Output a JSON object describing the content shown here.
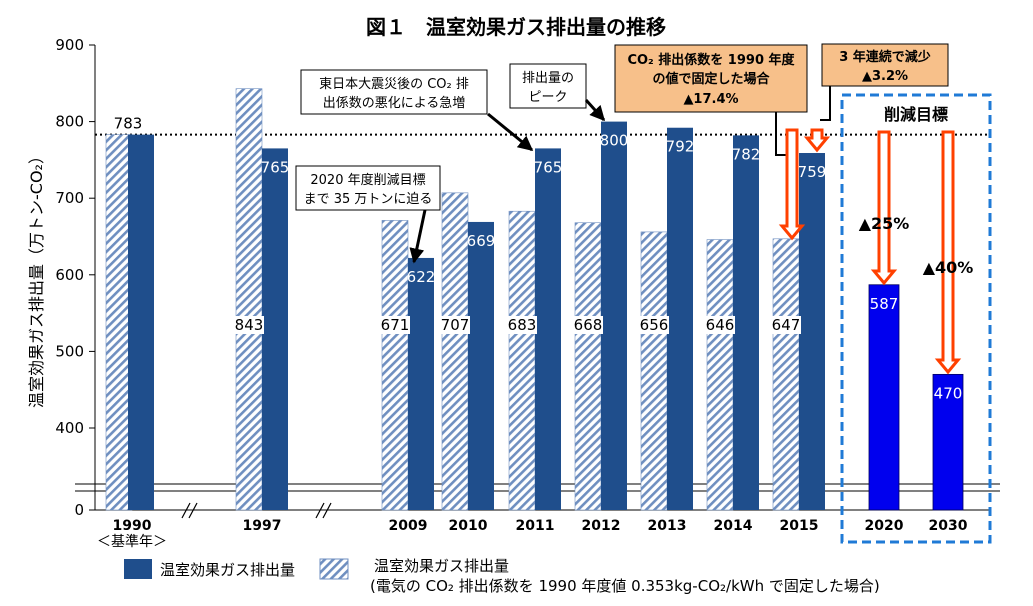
{
  "chart_data": {
    "type": "bar",
    "title": "図１　温室効果ガス排出量の推移",
    "ylabel": "温室効果ガス排出量（万トン-CO₂）",
    "yticks": [
      "900",
      "800",
      "700",
      "600",
      "500",
      "400",
      "0"
    ],
    "ylim": [
      350,
      900
    ],
    "axis_break": true,
    "categories": [
      "1990",
      "1997",
      "2009",
      "2010",
      "2011",
      "2012",
      "2013",
      "2014",
      "2015",
      "2020",
      "2030"
    ],
    "base_year_note": "＜基準年＞",
    "reference_line": 783,
    "series": [
      {
        "name": "温室効果ガス排出量",
        "color": "#1f4e8c",
        "values": [
          783,
          765,
          622,
          669,
          765,
          800,
          792,
          782,
          759,
          null,
          null
        ],
        "labels": [
          "783",
          "765",
          "622",
          "669",
          "765",
          "800",
          "792",
          "782",
          "759",
          "",
          ""
        ]
      },
      {
        "name": "温室効果ガス排出量",
        "name_line2": "(電気の CO₂ 排出係数を 1990 年度値 0.353kg-CO₂/kWh で固定した場合)",
        "pattern": "hatched",
        "values": [
          783,
          843,
          671,
          707,
          683,
          668,
          656,
          646,
          647,
          null,
          null
        ],
        "labels": [
          "",
          "843",
          "671",
          "707",
          "683",
          "668",
          "656",
          "646",
          "647",
          "",
          ""
        ]
      },
      {
        "name": "削減目標",
        "color": "#0000ee",
        "values": [
          null,
          null,
          null,
          null,
          null,
          null,
          null,
          null,
          null,
          587,
          470
        ],
        "labels": [
          "",
          "",
          "",
          "",
          "",
          "",
          "",
          "",
          "",
          "587",
          "470"
        ]
      }
    ],
    "target_box_label": "削減目標",
    "annotations": {
      "quake": [
        "東日本大震災後の CO₂ 排",
        "出係数の悪化による急増"
      ],
      "peak": [
        "排出量の",
        "ピーク"
      ],
      "near": [
        "2020 年度削減目標",
        "まで 35 万トンに迫る"
      ],
      "fixed": [
        "CO₂ 排出係数を 1990 年度",
        "の値で固定した場合",
        "▲17.4%"
      ],
      "decline": [
        "3 年連続で減少",
        "▲3.2%"
      ],
      "cut2020": "▲25%",
      "cut2030": "▲40%"
    }
  }
}
